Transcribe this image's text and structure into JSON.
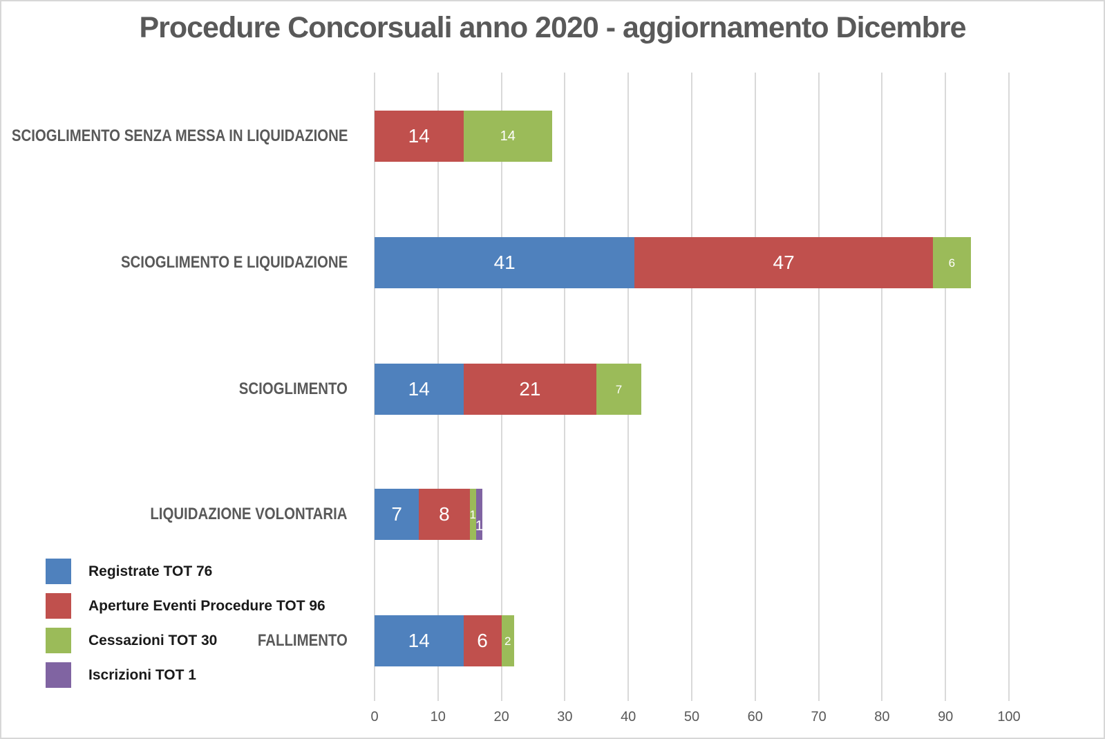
{
  "title": "Procedure Concorsuali anno 2020 - aggiornamento Dicembre",
  "colors": {
    "title_text": "#595959",
    "axis_text": "#595959",
    "category_text": "#595959",
    "grid_line": "#d9d9d9",
    "bar_label": "#ffffff",
    "legend_text": "#1a1a1a",
    "frame_border": "#d7d7d7",
    "background": "#ffffff",
    "series_blue": "#4F81BD",
    "series_red": "#C0504D",
    "series_green": "#9BBB59",
    "series_purple": "#8064A2"
  },
  "chart_data": {
    "type": "bar",
    "orientation": "horizontal",
    "stacked": true,
    "title": "Procedure Concorsuali anno 2020 - aggiornamento Dicembre",
    "categories": [
      "SCIOGLIMENTO SENZA MESSA IN LIQUIDAZIONE",
      "SCIOGLIMENTO E LIQUIDAZIONE",
      "SCIOGLIMENTO",
      "LIQUIDAZIONE VOLONTARIA",
      "FALLIMENTO"
    ],
    "series": [
      {
        "name": "Registrate TOT 76",
        "key": "registrate",
        "color": "#4F81BD",
        "values": [
          0,
          41,
          14,
          7,
          14
        ]
      },
      {
        "name": "Aperture Eventi Procedure TOT 96",
        "key": "aperture",
        "color": "#C0504D",
        "values": [
          14,
          47,
          21,
          8,
          6
        ]
      },
      {
        "name": "Cessazioni TOT 30",
        "key": "cessazioni",
        "color": "#9BBB59",
        "values": [
          14,
          6,
          7,
          1,
          2
        ]
      },
      {
        "name": "Iscrizioni TOT 1",
        "key": "iscrizioni",
        "color": "#8064A2",
        "values": [
          0,
          0,
          0,
          1,
          0
        ]
      }
    ],
    "xlabel": "",
    "ylabel": "",
    "xlim": [
      0,
      100
    ],
    "xticks": [
      0,
      10,
      20,
      30,
      40,
      50,
      60,
      70,
      80,
      90,
      100
    ],
    "grid": true,
    "legend_position": "bottom-left",
    "bar_labels_visible": true
  }
}
